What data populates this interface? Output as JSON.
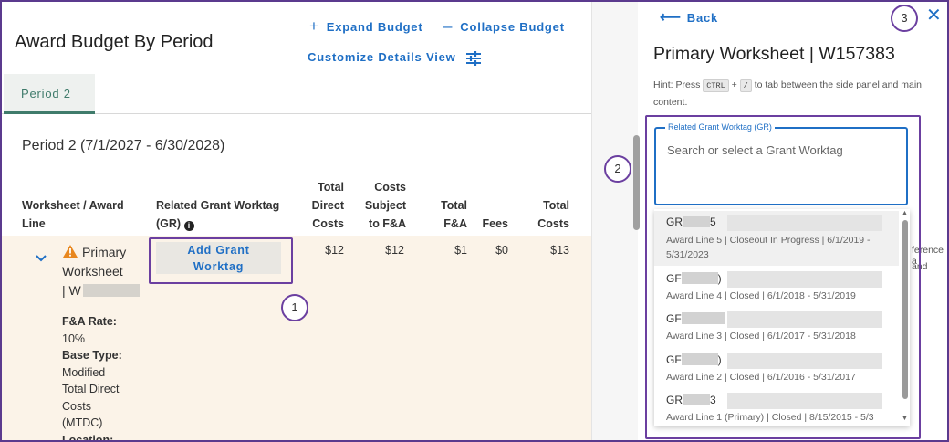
{
  "main": {
    "title": "Award Budget By Period",
    "expand_label": "Expand Budget",
    "collapse_label": "Collapse Budget",
    "customize_label": "Customize Details View",
    "tab_label": "Period 2",
    "period_heading": "Period 2 (7/1/2027 - 6/30/2028)",
    "columns": {
      "worksheet": [
        "Worksheet / Award",
        "Line"
      ],
      "worktag": [
        "Related Grant Worktag",
        "(GR)"
      ],
      "direct": [
        "Total",
        "Direct",
        "Costs"
      ],
      "subject": [
        "Costs",
        "Subject",
        "to F&A"
      ],
      "fa": [
        "Total",
        "F&A"
      ],
      "fees": [
        "Fees"
      ],
      "total": [
        "Total",
        "Costs"
      ]
    },
    "row": {
      "name_line1": "Primary",
      "name_line2": "Worksheet",
      "name_prefix": "| W",
      "fa_rate_label": "F&A Rate:",
      "fa_rate_value": "10%",
      "base_type_label": "Base Type:",
      "base_type_value": [
        "Modified",
        "Total Direct",
        "Costs",
        "(MTDC)"
      ],
      "location_label": "Location:",
      "add_worktag_label": [
        "Add Grant",
        "Worktag"
      ],
      "direct": "$12",
      "subject": "$12",
      "fa": "$1",
      "fees": "$0",
      "total": "$13"
    }
  },
  "side": {
    "back_label": "Back",
    "title": "Primary Worksheet | W157383",
    "hint_prefix": "Hint: Press",
    "hint_key1": "CTRL",
    "hint_plus": "+",
    "hint_key2": "/",
    "hint_suffix": "to tab between the side panel and main",
    "hint_line2": "content.",
    "field_label": "Related Grant Worktag (GR)",
    "field_placeholder": "Search or select a Grant Worktag",
    "behind_text": [
      "ference a",
      "and"
    ],
    "options": [
      {
        "code": "GR",
        "code_tail": "5",
        "sub": [
          "Award Line 5 | Closeout In Progress | 6/1/2019 -",
          "5/31/2023"
        ]
      },
      {
        "code": "GF",
        "code_tail": ")",
        "sub": [
          "Award Line 4 | Closed | 6/1/2018 - 5/31/2019"
        ]
      },
      {
        "code": "GF",
        "code_tail": "",
        "sub": [
          "Award Line 3 | Closed | 6/1/2017 - 5/31/2018"
        ]
      },
      {
        "code": "GF",
        "code_tail": ")",
        "sub": [
          "Award Line 2 | Closed | 6/1/2016 - 5/31/2017"
        ]
      },
      {
        "code": "GR",
        "code_tail": "3",
        "sub": [
          "Award Line 1 (Primary) | Closed | 8/15/2015 - 5/3"
        ]
      }
    ]
  },
  "callouts": [
    "1",
    "2",
    "3"
  ],
  "colors": {
    "accent": "#1f6fc5",
    "highlight": "#6b3fa0",
    "tab": "#3f7b6b",
    "row": "#fbf3e8"
  }
}
